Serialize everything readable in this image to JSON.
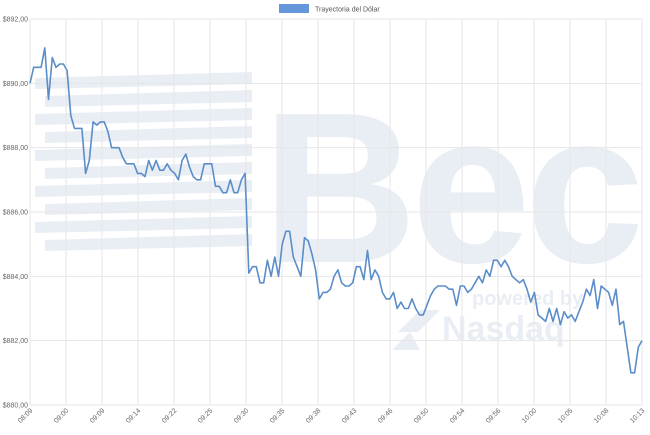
{
  "chart_data": {
    "type": "line",
    "legend": {
      "label": "Trayectoria del Dólar",
      "position": "top"
    },
    "colors": {
      "line": "#5b8dc9",
      "legend_swatch": "#6596d9",
      "watermark": "#e9eef5"
    },
    "watermark": {
      "brand": "Bec",
      "tagline_1": "powered by",
      "tagline_2": "Nasdaq"
    },
    "grid": true,
    "ylim": [
      880,
      892
    ],
    "y_ticks": [
      "$880,00",
      "$882,00",
      "$884,00",
      "$886,00",
      "$888,00",
      "$890,00",
      "$892,00"
    ],
    "y_tick_values": [
      880,
      882,
      884,
      886,
      888,
      890,
      892
    ],
    "x_ticks": [
      "08:09",
      "09:00",
      "09:09",
      "09:14",
      "09:22",
      "09:25",
      "09:30",
      "09:35",
      "09:38",
      "09:43",
      "09:46",
      "09:50",
      "09:54",
      "09:56",
      "10:00",
      "10:05",
      "10:08",
      "10:13"
    ],
    "series": [
      {
        "name": "Trayectoria del Dólar",
        "values": [
          890.0,
          890.5,
          890.5,
          890.5,
          891.1,
          889.5,
          890.8,
          890.5,
          890.6,
          890.6,
          890.4,
          889.0,
          888.6,
          888.6,
          888.6,
          887.2,
          887.6,
          888.8,
          888.7,
          888.8,
          888.8,
          888.5,
          888.0,
          888.0,
          888.0,
          887.7,
          887.5,
          887.5,
          887.5,
          887.2,
          887.2,
          887.1,
          887.6,
          887.3,
          887.6,
          887.3,
          887.3,
          887.5,
          887.3,
          887.2,
          887.0,
          887.6,
          887.8,
          887.4,
          887.1,
          887.0,
          887.0,
          887.5,
          887.5,
          887.5,
          886.8,
          886.8,
          886.6,
          886.6,
          887.0,
          886.6,
          886.6,
          887.0,
          887.2,
          884.1,
          884.3,
          884.3,
          883.8,
          883.8,
          884.5,
          884.0,
          884.6,
          884.0,
          885.0,
          885.4,
          885.4,
          884.6,
          884.3,
          884.0,
          885.2,
          885.1,
          884.7,
          884.2,
          883.3,
          883.5,
          883.5,
          883.6,
          884.0,
          884.2,
          883.8,
          883.7,
          883.7,
          883.8,
          884.3,
          884.3,
          883.9,
          884.8,
          883.9,
          884.2,
          884.0,
          883.5,
          883.3,
          883.3,
          883.5,
          883.0,
          883.2,
          883.0,
          883.0,
          883.3,
          883.0,
          882.8,
          882.8,
          883.1,
          883.4,
          883.6,
          883.7,
          883.7,
          883.7,
          883.6,
          883.6,
          883.1,
          883.7,
          883.7,
          883.5,
          883.6,
          883.8,
          884.0,
          883.8,
          884.2,
          884.0,
          884.5,
          884.5,
          884.3,
          884.5,
          884.3,
          884.0,
          883.9,
          883.8,
          883.9,
          883.6,
          883.2,
          883.5,
          882.8,
          882.7,
          882.6,
          883.0,
          882.6,
          883.0,
          882.5,
          882.9,
          882.7,
          882.8,
          882.6,
          882.9,
          883.2,
          883.6,
          883.4,
          883.9,
          883.0,
          883.7,
          883.6,
          883.5,
          883.1,
          883.6,
          882.5,
          882.6,
          881.8,
          881.0,
          881.0,
          881.8,
          882.0
        ]
      }
    ]
  }
}
